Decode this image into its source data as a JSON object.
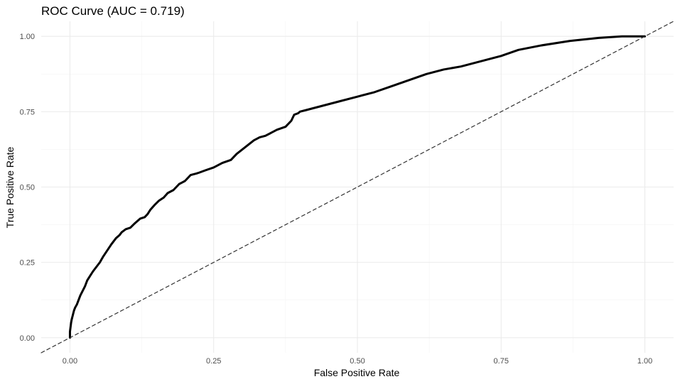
{
  "chart_data": {
    "type": "line",
    "title": "ROC Curve (AUC = 0.719)",
    "xlabel": "False Positive Rate",
    "ylabel": "True Positive Rate",
    "xlim": [
      -0.05,
      1.05
    ],
    "ylim": [
      -0.05,
      1.05
    ],
    "x_ticks": [
      "0.00",
      "0.25",
      "0.50",
      "0.75",
      "1.00"
    ],
    "y_ticks": [
      "0.00",
      "0.25",
      "0.50",
      "0.75",
      "1.00"
    ],
    "grid": true,
    "series": [
      {
        "style": "solid",
        "color": "#000000",
        "x": [
          0.0,
          0.0,
          0.002,
          0.003,
          0.005,
          0.007,
          0.009,
          0.012,
          0.015,
          0.018,
          0.022,
          0.026,
          0.03,
          0.035,
          0.04,
          0.046,
          0.052,
          0.058,
          0.065,
          0.072,
          0.08,
          0.086,
          0.09,
          0.097,
          0.105,
          0.113,
          0.122,
          0.13,
          0.135,
          0.14,
          0.147,
          0.155,
          0.163,
          0.17,
          0.18,
          0.19,
          0.2,
          0.21,
          0.22,
          0.225,
          0.235,
          0.25,
          0.265,
          0.28,
          0.29,
          0.3,
          0.31,
          0.32,
          0.33,
          0.34,
          0.35,
          0.36,
          0.375,
          0.385,
          0.39,
          0.397,
          0.4,
          0.41,
          0.43,
          0.45,
          0.47,
          0.5,
          0.53,
          0.56,
          0.59,
          0.62,
          0.65,
          0.68,
          0.7,
          0.75,
          0.78,
          0.82,
          0.87,
          0.92,
          0.96,
          1.0
        ],
        "y": [
          0.0,
          0.02,
          0.05,
          0.06,
          0.075,
          0.09,
          0.1,
          0.11,
          0.125,
          0.14,
          0.155,
          0.17,
          0.19,
          0.205,
          0.22,
          0.235,
          0.25,
          0.27,
          0.29,
          0.31,
          0.33,
          0.34,
          0.35,
          0.36,
          0.365,
          0.38,
          0.395,
          0.4,
          0.41,
          0.425,
          0.44,
          0.455,
          0.465,
          0.48,
          0.49,
          0.51,
          0.52,
          0.54,
          0.545,
          0.548,
          0.555,
          0.565,
          0.58,
          0.59,
          0.61,
          0.625,
          0.64,
          0.655,
          0.665,
          0.67,
          0.68,
          0.69,
          0.7,
          0.72,
          0.74,
          0.745,
          0.75,
          0.755,
          0.765,
          0.775,
          0.785,
          0.8,
          0.815,
          0.835,
          0.855,
          0.875,
          0.89,
          0.9,
          0.91,
          0.935,
          0.955,
          0.97,
          0.985,
          0.995,
          1.0,
          1.0
        ]
      },
      {
        "style": "dashed",
        "color": "#333333",
        "x": [
          -0.05,
          1.05
        ],
        "y": [
          -0.05,
          1.05
        ]
      }
    ]
  }
}
